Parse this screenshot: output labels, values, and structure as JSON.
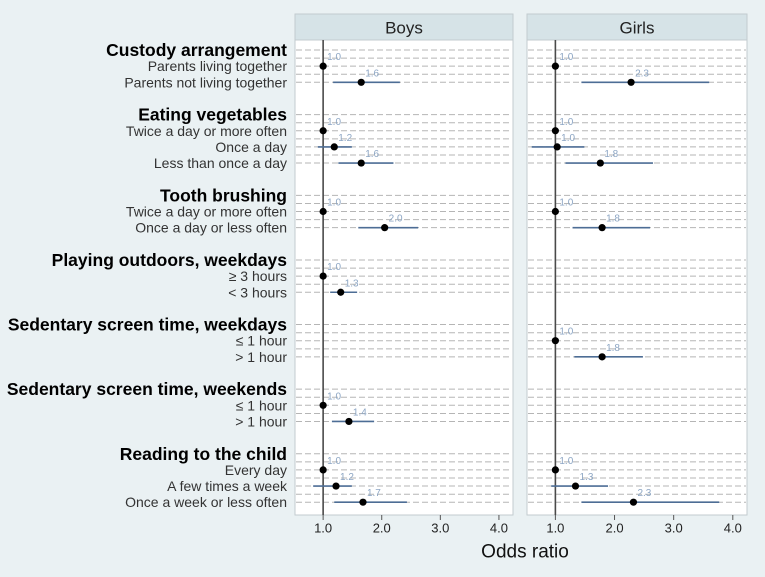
{
  "chart_data": {
    "type": "scatter",
    "xlabel": "Odds ratio",
    "xlim": [
      0.52,
      4.24
    ],
    "xticks": {
      "values": [
        1,
        2,
        3,
        4
      ],
      "labels": [
        "1.0",
        "2.0",
        "3.0",
        "4.0"
      ]
    },
    "reference_value": 1.0,
    "panels": [
      "Boys",
      "Girls"
    ],
    "groups": [
      {
        "heading": "Custody arrangement",
        "rows": [
          {
            "label": "Parents living together",
            "boys": {
              "or": 1.0,
              "label": "1.0"
            },
            "girls": {
              "or": 1.0,
              "label": "1.0"
            }
          },
          {
            "label": "Parents not living together",
            "boys": {
              "or": 1.65,
              "lo": 1.17,
              "hi": 2.31,
              "label": "1.6"
            },
            "girls": {
              "or": 2.28,
              "lo": 1.44,
              "hi": 3.6,
              "label": "2.3"
            }
          }
        ]
      },
      {
        "heading": "Eating vegetables",
        "rows": [
          {
            "label": "Twice a day or more often",
            "boys": {
              "or": 1.0,
              "label": "1.0"
            },
            "girls": {
              "or": 1.0,
              "label": "1.0"
            }
          },
          {
            "label": "Once a day",
            "boys": {
              "or": 1.19,
              "lo": 0.91,
              "hi": 1.49,
              "label": "1.2"
            },
            "girls": {
              "or": 1.03,
              "lo": 0.6,
              "hi": 1.49,
              "label": "1.0"
            }
          },
          {
            "label": "Less than once a day",
            "boys": {
              "or": 1.65,
              "lo": 1.26,
              "hi": 2.2,
              "label": "1.6"
            },
            "girls": {
              "or": 1.76,
              "lo": 1.17,
              "hi": 2.65,
              "label": "1.8"
            }
          }
        ]
      },
      {
        "heading": "Tooth brushing",
        "rows": [
          {
            "label": "Twice a day or more often",
            "boys": {
              "or": 1.0,
              "label": "1.0"
            },
            "girls": {
              "or": 1.0,
              "label": "1.0"
            }
          },
          {
            "label": "Once a day or less often",
            "boys": {
              "or": 2.05,
              "lo": 1.6,
              "hi": 2.62,
              "label": "2.0"
            },
            "girls": {
              "or": 1.79,
              "lo": 1.29,
              "hi": 2.6,
              "label": "1.8"
            }
          }
        ]
      },
      {
        "heading": "Playing outdoors, weekdays",
        "rows": [
          {
            "label": "≥ 3 hours",
            "boys": {
              "or": 1.0,
              "label": "1.0"
            },
            "girls": null
          },
          {
            "label": "< 3 hours",
            "boys": {
              "or": 1.3,
              "lo": 1.12,
              "hi": 1.58,
              "label": "1.3"
            },
            "girls": null
          }
        ]
      },
      {
        "heading": "Sedentary screen time, weekdays",
        "rows": [
          {
            "label": "≤ 1 hour",
            "boys": null,
            "girls": {
              "or": 1.0,
              "label": "1.0"
            }
          },
          {
            "label": "> 1 hour",
            "boys": null,
            "girls": {
              "or": 1.79,
              "lo": 1.32,
              "hi": 2.48,
              "label": "1.8"
            }
          }
        ]
      },
      {
        "heading": "Sedentary screen time, weekends",
        "rows": [
          {
            "label": "≤ 1 hour",
            "boys": {
              "or": 1.0,
              "label": "1.0"
            },
            "girls": null
          },
          {
            "label": "> 1 hour",
            "boys": {
              "or": 1.44,
              "lo": 1.15,
              "hi": 1.87,
              "label": "1.4"
            },
            "girls": null
          }
        ]
      },
      {
        "heading": "Reading to the child",
        "rows": [
          {
            "label": "Every day",
            "boys": {
              "or": 1.0,
              "label": "1.0"
            },
            "girls": {
              "or": 1.0,
              "label": "1.0"
            }
          },
          {
            "label": "A few times a week",
            "boys": {
              "or": 1.22,
              "lo": 0.83,
              "hi": 1.49,
              "label": "1.2"
            },
            "girls": {
              "or": 1.34,
              "lo": 0.93,
              "hi": 1.89,
              "label": "1.3"
            }
          },
          {
            "label": "Once a week or less often",
            "boys": {
              "or": 1.68,
              "lo": 1.19,
              "hi": 2.43,
              "label": "1.7"
            },
            "girls": {
              "or": 2.32,
              "lo": 1.44,
              "hi": 3.77,
              "label": "2.3"
            }
          }
        ]
      }
    ]
  },
  "colors": {
    "background": "#eaf1f3",
    "header": "#d6e3e7",
    "plot": "#ffffff",
    "border": "#c3cbcf",
    "grid": "#b5b5b5",
    "reference_line": "#4a4a4a",
    "ci": "#4d6d95",
    "dot": "#000000",
    "value_label": "#8da6c4",
    "text": "#000000",
    "row_text": "#333333",
    "axis_text": "#222222"
  }
}
